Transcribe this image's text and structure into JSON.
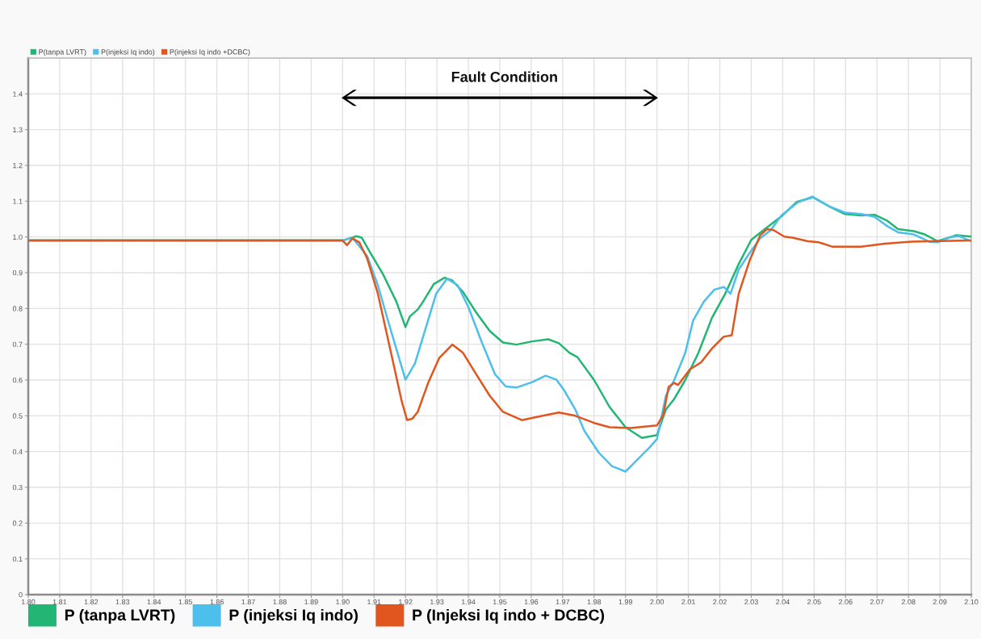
{
  "chart_data": {
    "type": "line",
    "xlim": [
      1.8,
      2.1
    ],
    "xticks": [
      {
        "value": 1.8,
        "label": "1.80"
      },
      1.81,
      1.82,
      1.83,
      1.84,
      1.85,
      1.86,
      1.87,
      1.88,
      1.89,
      {
        "value": 1.9,
        "label": "1.90"
      },
      1.91,
      1.92,
      1.93,
      1.94,
      1.95,
      1.96,
      1.97,
      1.98,
      1.99,
      {
        "value": 2.0,
        "label": "2.00"
      },
      2.01,
      2.02,
      2.03,
      2.04,
      2.05,
      2.06,
      2.07,
      2.08,
      2.09,
      {
        "value": 2.1,
        "label": "2.10"
      }
    ],
    "ylim": [
      0,
      1.5
    ],
    "yticks": [
      0,
      0.1,
      0.2,
      0.3,
      0.4,
      0.5,
      0.6,
      0.7,
      0.8,
      0.9,
      {
        "value": 1.0,
        "label": "1.0"
      },
      1.1,
      1.2,
      1.3,
      1.4
    ],
    "grid": true,
    "legend": "top left",
    "marker": "none",
    "line_style": "solid",
    "annotations": [
      "Fault Condition",
      "P (tanpa LVRT)",
      "P (injeksi Iq indo)",
      "P (Injeksi Iq indo + DCBC)"
    ],
    "series": [
      {
        "name": "P(tanpa LVRT)",
        "color": "#22b573",
        "x": [
          1.8,
          1.9,
          1.9044,
          1.9061,
          1.9086,
          1.9129,
          1.9171,
          1.92,
          1.9214,
          1.9239,
          1.9256,
          1.929,
          1.9324,
          1.9349,
          1.9383,
          1.9425,
          1.9468,
          1.951,
          1.9553,
          1.9603,
          1.9654,
          1.9688,
          1.9722,
          1.9747,
          1.98,
          1.9849,
          1.99,
          1.9952,
          2.0,
          2.0028,
          2.0055,
          2.009,
          2.0132,
          2.0175,
          2.0217,
          2.026,
          2.03,
          2.0343,
          2.0394,
          2.0445,
          2.0496,
          2.0547,
          2.0598,
          2.0649,
          2.0692,
          2.0733,
          2.0767,
          2.0817,
          2.0852,
          2.0893,
          2.0953,
          2.1
        ],
        "values": [
          0.99,
          0.99,
          1.002,
          0.998,
          0.959,
          0.895,
          0.819,
          0.748,
          0.778,
          0.797,
          0.819,
          0.868,
          0.886,
          0.878,
          0.846,
          0.789,
          0.737,
          0.705,
          0.699,
          0.708,
          0.714,
          0.703,
          0.676,
          0.664,
          0.6,
          0.525,
          0.468,
          0.438,
          0.446,
          0.517,
          0.547,
          0.6,
          0.676,
          0.774,
          0.841,
          0.924,
          0.992,
          1.022,
          1.056,
          1.098,
          1.111,
          1.086,
          1.064,
          1.06,
          1.062,
          1.045,
          1.022,
          1.016,
          1.007,
          0.988,
          1.005,
          1.001
        ]
      },
      {
        "name": "P(injeksi Iq indo)",
        "color": "#4dbfec",
        "x": [
          1.8,
          1.9,
          1.9031,
          1.9078,
          1.9112,
          1.9154,
          1.92,
          1.923,
          1.9264,
          1.9298,
          1.9332,
          1.9366,
          1.94,
          1.9442,
          1.9485,
          1.9519,
          1.9553,
          1.9603,
          1.9646,
          1.968,
          1.9705,
          1.974,
          1.9769,
          1.9781,
          1.9815,
          1.9857,
          1.99,
          1.9934,
          1.9977,
          2.0,
          2.0028,
          2.0055,
          2.009,
          2.0115,
          2.0149,
          2.0183,
          2.0213,
          2.0234,
          2.026,
          2.0294,
          2.0328,
          2.0362,
          2.0396,
          2.0447,
          2.0494,
          2.0547,
          2.0598,
          2.0649,
          2.0692,
          2.0733,
          2.0767,
          2.0817,
          2.0868,
          2.0893,
          2.0936,
          2.0962,
          2.1
        ],
        "values": [
          0.99,
          0.99,
          0.998,
          0.947,
          0.865,
          0.737,
          0.601,
          0.646,
          0.744,
          0.842,
          0.883,
          0.865,
          0.804,
          0.707,
          0.616,
          0.582,
          0.579,
          0.594,
          0.612,
          0.601,
          0.571,
          0.518,
          0.458,
          0.442,
          0.397,
          0.359,
          0.344,
          0.374,
          0.412,
          0.435,
          0.555,
          0.6,
          0.676,
          0.766,
          0.819,
          0.853,
          0.86,
          0.841,
          0.909,
          0.954,
          0.996,
          1.019,
          1.06,
          1.096,
          1.113,
          1.086,
          1.068,
          1.064,
          1.056,
          1.03,
          1.013,
          1.007,
          0.986,
          0.985,
          1.0,
          1.002,
          0.988
        ]
      },
      {
        "name": "P(injeksi Iq indo +DCBC)",
        "color": "#e0561e",
        "x": [
          1.8,
          1.9,
          1.9014,
          1.9031,
          1.9053,
          1.9078,
          1.9112,
          1.9154,
          1.9188,
          1.9205,
          1.9222,
          1.9239,
          1.9273,
          1.9307,
          1.9349,
          1.9383,
          1.9425,
          1.9468,
          1.951,
          1.957,
          1.9637,
          1.9688,
          1.974,
          1.98,
          1.9849,
          1.9917,
          2.0,
          2.002,
          2.0037,
          2.0055,
          2.0067,
          2.0105,
          2.014,
          2.0174,
          2.0212,
          2.0238,
          2.026,
          2.0294,
          2.0328,
          2.035,
          2.0371,
          2.0405,
          2.043,
          2.048,
          2.0515,
          2.0557,
          2.0649,
          2.0725,
          2.081,
          2.1
        ],
        "values": [
          0.99,
          0.99,
          0.977,
          0.996,
          0.985,
          0.94,
          0.842,
          0.676,
          0.541,
          0.488,
          0.492,
          0.511,
          0.594,
          0.661,
          0.699,
          0.676,
          0.616,
          0.556,
          0.511,
          0.488,
          0.5,
          0.509,
          0.5,
          0.48,
          0.468,
          0.466,
          0.473,
          0.502,
          0.581,
          0.592,
          0.586,
          0.63,
          0.649,
          0.687,
          0.721,
          0.725,
          0.841,
          0.932,
          1.004,
          1.022,
          1.019,
          1.001,
          0.998,
          0.988,
          0.985,
          0.973,
          0.973,
          0.981,
          0.987,
          0.99
        ]
      }
    ]
  }
}
